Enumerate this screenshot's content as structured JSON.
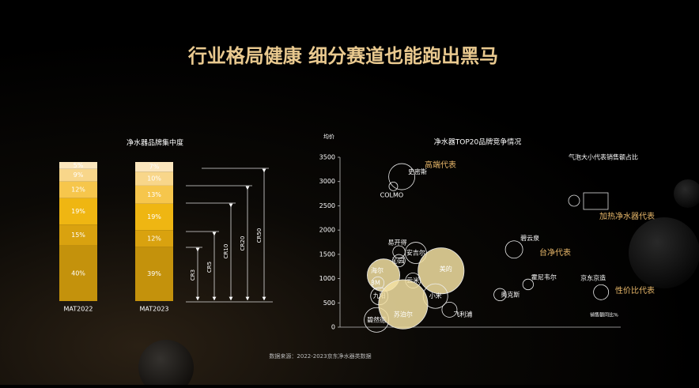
{
  "title": "行业格局健康 细分赛道也能跑出黑马",
  "source": "数据来源：2022-2023京东净水器类数据",
  "chart_data": [
    {
      "type": "stacked-bar",
      "title": "净水器品牌集中度",
      "categories": [
        "MAT2022",
        "MAT2023"
      ],
      "ylim": [
        0,
        100
      ],
      "series": [
        {
          "color": "#c4920c",
          "values": [
            40,
            39
          ],
          "value_labels": [
            "40%",
            "39%"
          ]
        },
        {
          "color": "#d9a20f",
          "values": [
            15,
            12
          ],
          "value_labels": [
            "15%",
            "12%"
          ]
        },
        {
          "color": "#efb612",
          "values": [
            19,
            19
          ],
          "value_labels": [
            "19%",
            "19%"
          ]
        },
        {
          "color": "#f6c64c",
          "values": [
            12,
            13
          ],
          "value_labels": [
            "12%",
            "13%"
          ]
        },
        {
          "color": "#f8d68a",
          "values": [
            9,
            10
          ],
          "value_labels": [
            "9%",
            "10%"
          ]
        },
        {
          "color": "#fbe6bd",
          "values": [
            5,
            7
          ],
          "value_labels": [
            "5%",
            "7%"
          ]
        }
      ],
      "brackets": [
        "CR3",
        "CR5",
        "CR10",
        "CR20",
        "CR50"
      ]
    },
    {
      "type": "bubble",
      "title": "净水器TOP20品牌竞争情况",
      "ylabel": "均价",
      "xlabel": "销售额同比%",
      "legend_note": "气泡大小代表销售额占比",
      "annotations": [
        "高端代表",
        "加热净水器代表",
        "台净代表",
        "性价比代表"
      ],
      "annotation_color": "#e8b86a",
      "ylim": [
        0,
        3500
      ],
      "yticks": [
        0,
        500,
        1000,
        1500,
        2000,
        2500,
        3000,
        3500
      ],
      "xlim": [
        0,
        100
      ],
      "names": [
        "史密斯",
        "COLMO",
        "易开得",
        "安吉尔",
        "沁园",
        "海尔",
        "3M",
        "美的",
        "云米",
        "小米",
        "九阳",
        "飞利浦",
        "碧然德",
        "苏泊尔",
        "碧云泉",
        "奥克斯",
        "霍尼韦尔",
        "京东京造"
      ],
      "x": [
        22,
        19,
        21,
        27,
        21,
        15.5,
        13.5,
        36,
        26,
        34,
        14,
        39,
        13,
        22.5,
        62,
        57,
        67,
        93
      ],
      "y": [
        3100,
        2900,
        1550,
        1530,
        1370,
        1070,
        910,
        1160,
        960,
        640,
        640,
        360,
        150,
        470,
        1600,
        670,
        880,
        720
      ],
      "sizes": [
        9,
        1,
        2,
        6,
        2,
        14,
        2,
        28,
        3,
        8,
        4,
        3,
        8,
        32,
        4,
        2,
        1.5,
        3
      ],
      "colors": [
        "none",
        "none",
        "none",
        "none",
        "none",
        "#f3e0a2",
        "none",
        "#f3e0a2",
        "none",
        "none",
        "none",
        "none",
        "none",
        "#f3e0a2",
        "none",
        "none",
        "none",
        "none"
      ]
    }
  ]
}
